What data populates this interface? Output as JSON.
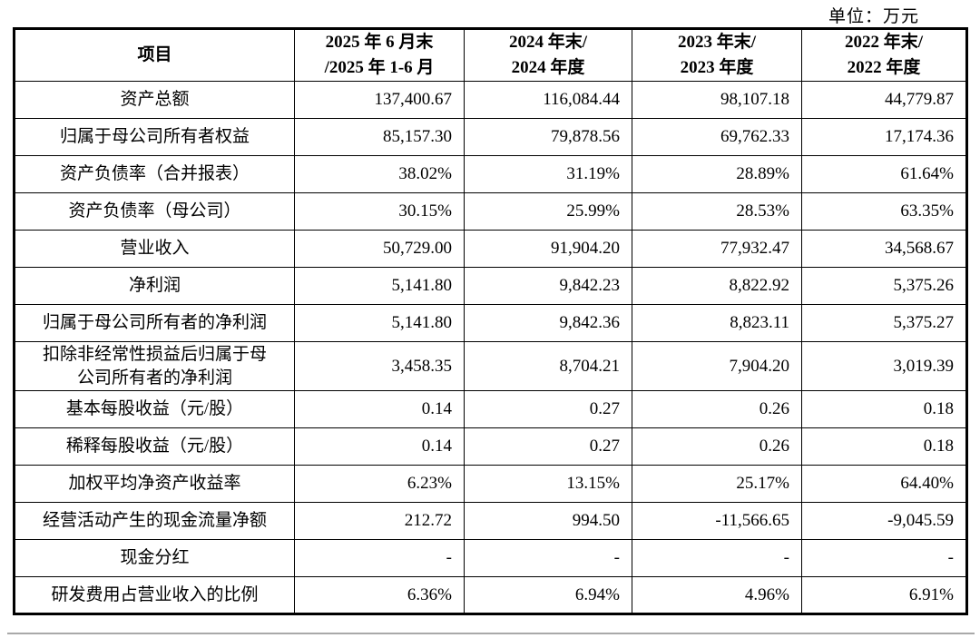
{
  "page": {
    "unit_label": "单位：万元"
  },
  "table": {
    "header": {
      "item": "项目",
      "periods": [
        {
          "line1": "2025 年 6 月末",
          "line2": "/2025 年 1-6 月"
        },
        {
          "line1": "2024 年末/",
          "line2": "2024 年度"
        },
        {
          "line1": "2023 年末/",
          "line2": "2023 年度"
        },
        {
          "line1": "2022 年末/",
          "line2": "2022 年度"
        }
      ]
    },
    "rows": [
      {
        "item": "资产总额",
        "tall": false,
        "values": [
          "137,400.67",
          "116,084.44",
          "98,107.18",
          "44,779.87"
        ]
      },
      {
        "item": "归属于母公司所有者权益",
        "tall": false,
        "values": [
          "85,157.30",
          "79,878.56",
          "69,762.33",
          "17,174.36"
        ]
      },
      {
        "item": "资产负债率（合并报表）",
        "tall": false,
        "values": [
          "38.02%",
          "31.19%",
          "28.89%",
          "61.64%"
        ]
      },
      {
        "item": "资产负债率（母公司）",
        "tall": false,
        "values": [
          "30.15%",
          "25.99%",
          "28.53%",
          "63.35%"
        ]
      },
      {
        "item": "营业收入",
        "tall": false,
        "values": [
          "50,729.00",
          "91,904.20",
          "77,932.47",
          "34,568.67"
        ]
      },
      {
        "item": "净利润",
        "tall": false,
        "values": [
          "5,141.80",
          "9,842.23",
          "8,822.92",
          "5,375.26"
        ]
      },
      {
        "item": "归属于母公司所有者的净利润",
        "tall": false,
        "values": [
          "5,141.80",
          "9,842.36",
          "8,823.11",
          "5,375.27"
        ]
      },
      {
        "item": "扣除非经常性损益后归属于母\n公司所有者的净利润",
        "tall": true,
        "values": [
          "3,458.35",
          "8,704.21",
          "7,904.20",
          "3,019.39"
        ]
      },
      {
        "item": "基本每股收益（元/股）",
        "tall": false,
        "values": [
          "0.14",
          "0.27",
          "0.26",
          "0.18"
        ]
      },
      {
        "item": "稀释每股收益（元/股）",
        "tall": false,
        "values": [
          "0.14",
          "0.27",
          "0.26",
          "0.18"
        ]
      },
      {
        "item": "加权平均净资产收益率",
        "tall": false,
        "values": [
          "6.23%",
          "13.15%",
          "25.17%",
          "64.40%"
        ]
      },
      {
        "item": "经营活动产生的现金流量净额",
        "tall": false,
        "values": [
          "212.72",
          "994.50",
          "-11,566.65",
          "-9,045.59"
        ]
      },
      {
        "item": "现金分红",
        "tall": false,
        "values": [
          "-",
          "-",
          "-",
          "-"
        ]
      },
      {
        "item": "研发费用占营业收入的比例",
        "tall": false,
        "values": [
          "6.36%",
          "6.94%",
          "4.96%",
          "6.91%"
        ]
      }
    ]
  }
}
